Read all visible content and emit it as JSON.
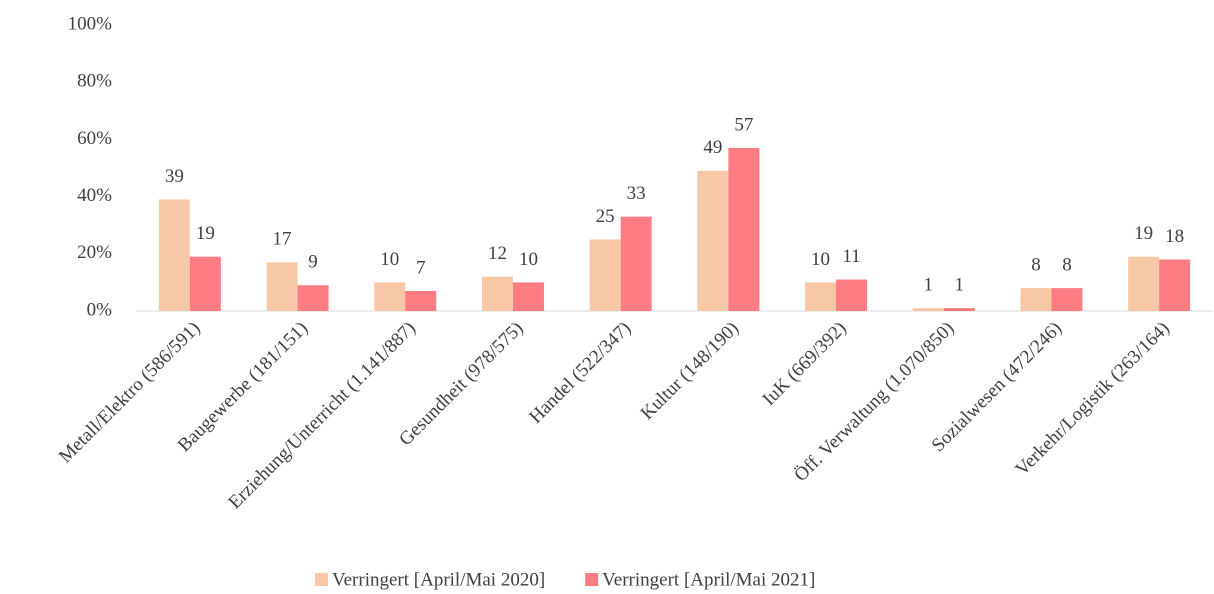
{
  "chart_data": {
    "type": "bar",
    "categories": [
      "Metall/Elektro (586/591)",
      "Baugewerbe (181/151)",
      "Erziehung/Unterricht (1.141/887)",
      "Gesundheit (978/575)",
      "Handel (522/347)",
      "Kultur (148/190)",
      "IuK (669/392)",
      "Öff. Verwaltung (1.070/850)",
      "Sozialwesen (472/246)",
      "Verkehr/Logistik (263/164)"
    ],
    "series": [
      {
        "name": "Verringert [April/Mai 2020]",
        "color": "#f8c8a6",
        "values": [
          39,
          17,
          10,
          12,
          25,
          49,
          10,
          1,
          8,
          19
        ]
      },
      {
        "name": "Verringert [April/Mai 2021]",
        "color": "#ff7c82",
        "values": [
          19,
          9,
          7,
          10,
          33,
          57,
          11,
          1,
          8,
          18
        ]
      }
    ],
    "ylim": [
      0,
      100
    ],
    "yticks": [
      {
        "value": 0,
        "label": "0%"
      },
      {
        "value": 20,
        "label": "20%"
      },
      {
        "value": 40,
        "label": "40%"
      },
      {
        "value": 60,
        "label": "60%"
      },
      {
        "value": 80,
        "label": "80%"
      },
      {
        "value": 100,
        "label": "100%"
      }
    ],
    "grid": false,
    "legend": "bottom"
  }
}
